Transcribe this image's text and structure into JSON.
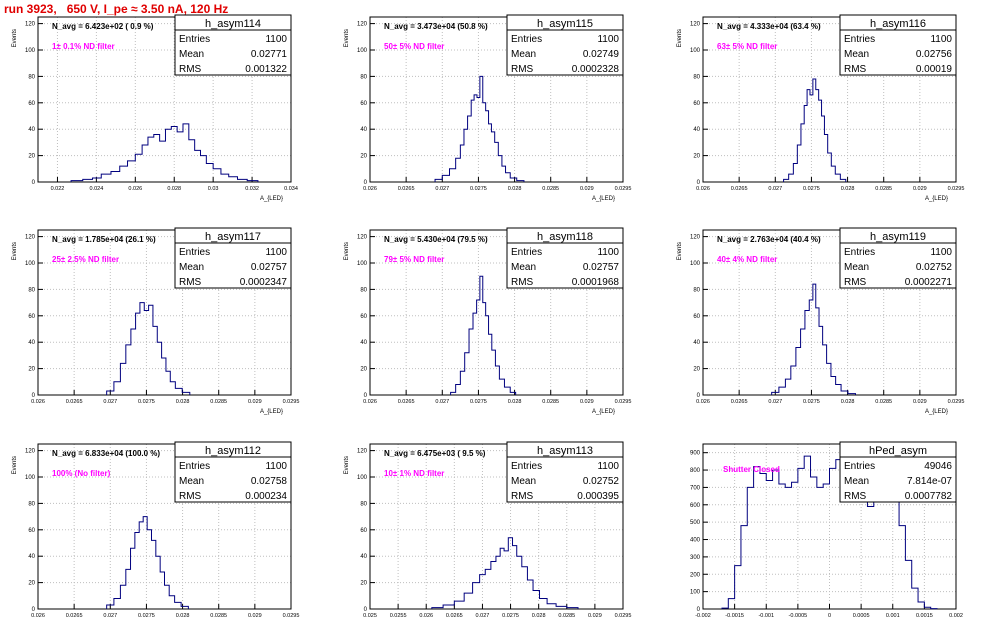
{
  "header": {
    "run_title": "run 3923,   650 V, I_pe ≈ 3.50 nA, 120 Hz"
  },
  "colors": {
    "title": "#e00000",
    "annotation": "#ff00ff",
    "histogram": "#00007f",
    "grid": "#bfbfbf"
  },
  "chart_data": [
    {
      "type": "bar",
      "name": "h_asym114",
      "stats": {
        "entries_label": "Entries",
        "entries": "1100",
        "mean_label": "Mean",
        "mean": "0.02771",
        "rms_label": "RMS",
        "rms": "0.001322"
      },
      "navg": "N_avg = 6.423e+02 ( 0.9 %)",
      "filter_label": "1± 0.1% ND filter",
      "ylabel": "Events",
      "xlabel": "A_{LED}",
      "xlim": [
        0.021,
        0.034
      ],
      "ylim": [
        0,
        125
      ],
      "yticks": [
        0,
        20,
        40,
        60,
        80,
        100,
        120
      ],
      "xticks": [
        "0.022",
        "0.024",
        "0.026",
        "0.028",
        "0.03",
        "0.032",
        "0.034"
      ],
      "xtick_values": [
        0.022,
        0.024,
        0.026,
        0.028,
        0.03,
        0.032,
        0.034
      ],
      "values": [
        [
          0.023,
          1
        ],
        [
          0.0236,
          2
        ],
        [
          0.024,
          3
        ],
        [
          0.0245,
          6
        ],
        [
          0.025,
          8
        ],
        [
          0.0254,
          12
        ],
        [
          0.0258,
          16
        ],
        [
          0.0262,
          21
        ],
        [
          0.0265,
          28
        ],
        [
          0.0268,
          34
        ],
        [
          0.0271,
          36
        ],
        [
          0.0274,
          31
        ],
        [
          0.0277,
          40
        ],
        [
          0.028,
          42
        ],
        [
          0.0283,
          38
        ],
        [
          0.0286,
          44
        ],
        [
          0.0289,
          32
        ],
        [
          0.0292,
          24
        ],
        [
          0.0295,
          20
        ],
        [
          0.0298,
          14
        ],
        [
          0.0302,
          10
        ],
        [
          0.0306,
          6
        ],
        [
          0.031,
          4
        ],
        [
          0.0315,
          2
        ],
        [
          0.032,
          1
        ]
      ]
    },
    {
      "type": "bar",
      "name": "h_asym115",
      "stats": {
        "entries_label": "Entries",
        "entries": "1100",
        "mean_label": "Mean",
        "mean": "0.02749",
        "rms_label": "RMS",
        "rms": "0.0002328"
      },
      "navg": "N_avg = 3.473e+04 (50.8 %)",
      "filter_label": "50± 5% ND filter",
      "ylabel": "Events",
      "xlabel": "A_{LED}",
      "xlim": [
        0.026,
        0.0295
      ],
      "ylim": [
        0,
        125
      ],
      "yticks": [
        0,
        20,
        40,
        60,
        80,
        100,
        120
      ],
      "xticks": [
        "0.026",
        "0.0265",
        "0.027",
        "0.0275",
        "0.028",
        "0.0285",
        "0.029",
        "0.0295"
      ],
      "xtick_values": [
        0.026,
        0.0265,
        0.027,
        0.0275,
        0.028,
        0.0285,
        0.029,
        0.0295
      ],
      "values": [
        [
          0.02695,
          2
        ],
        [
          0.02705,
          5
        ],
        [
          0.02715,
          10
        ],
        [
          0.02722,
          18
        ],
        [
          0.02728,
          28
        ],
        [
          0.02732,
          40
        ],
        [
          0.02738,
          50
        ],
        [
          0.02742,
          62
        ],
        [
          0.02746,
          66
        ],
        [
          0.0275,
          64
        ],
        [
          0.02754,
          80
        ],
        [
          0.02758,
          60
        ],
        [
          0.02762,
          54
        ],
        [
          0.02766,
          44
        ],
        [
          0.0277,
          38
        ],
        [
          0.02775,
          30
        ],
        [
          0.0278,
          20
        ],
        [
          0.02785,
          12
        ],
        [
          0.0279,
          7
        ],
        [
          0.02798,
          3
        ],
        [
          0.02808,
          1
        ]
      ]
    },
    {
      "type": "bar",
      "name": "h_asym116",
      "stats": {
        "entries_label": "Entries",
        "entries": "1100",
        "mean_label": "Mean",
        "mean": "0.02756",
        "rms_label": "RMS",
        "rms": "0.00019"
      },
      "navg": "N_avg = 4.333e+04 (63.4 %)",
      "filter_label": "63± 5% ND filter",
      "ylabel": "Events",
      "xlabel": "A_{LED}",
      "xlim": [
        0.026,
        0.0295
      ],
      "ylim": [
        0,
        125
      ],
      "yticks": [
        0,
        20,
        40,
        60,
        80,
        100,
        120
      ],
      "xticks": [
        "0.026",
        "0.0265",
        "0.027",
        "0.0275",
        "0.028",
        "0.0285",
        "0.029",
        "0.0295"
      ],
      "xtick_values": [
        0.026,
        0.0265,
        0.027,
        0.0275,
        0.028,
        0.0285,
        0.029,
        0.0295
      ],
      "values": [
        [
          0.02715,
          2
        ],
        [
          0.02722,
          6
        ],
        [
          0.02728,
          14
        ],
        [
          0.02733,
          28
        ],
        [
          0.02738,
          44
        ],
        [
          0.02742,
          58
        ],
        [
          0.02746,
          70
        ],
        [
          0.0275,
          66
        ],
        [
          0.02754,
          78
        ],
        [
          0.02758,
          70
        ],
        [
          0.02762,
          62
        ],
        [
          0.02766,
          50
        ],
        [
          0.0277,
          36
        ],
        [
          0.02775,
          22
        ],
        [
          0.0278,
          12
        ],
        [
          0.02786,
          6
        ],
        [
          0.02794,
          2
        ]
      ]
    },
    {
      "type": "bar",
      "name": "h_asym117",
      "stats": {
        "entries_label": "Entries",
        "entries": "1100",
        "mean_label": "Mean",
        "mean": "0.02757",
        "rms_label": "RMS",
        "rms": "0.0002347"
      },
      "navg": "N_avg = 1.785e+04 (26.1 %)",
      "filter_label": "25± 2.5% ND filter",
      "ylabel": "Events",
      "xlabel": "A_{LED}",
      "xlim": [
        0.026,
        0.0295
      ],
      "ylim": [
        0,
        125
      ],
      "yticks": [
        0,
        20,
        40,
        60,
        80,
        100,
        120
      ],
      "xticks": [
        "0.026",
        "0.0265",
        "0.027",
        "0.0275",
        "0.028",
        "0.0285",
        "0.029",
        "0.0295"
      ],
      "xtick_values": [
        0.026,
        0.0265,
        0.027,
        0.0275,
        0.028,
        0.0285,
        0.029,
        0.0295
      ],
      "values": [
        [
          0.027,
          3
        ],
        [
          0.0271,
          10
        ],
        [
          0.02718,
          24
        ],
        [
          0.02725,
          38
        ],
        [
          0.02732,
          50
        ],
        [
          0.02738,
          62
        ],
        [
          0.02744,
          70
        ],
        [
          0.0275,
          64
        ],
        [
          0.02756,
          68
        ],
        [
          0.02762,
          52
        ],
        [
          0.02768,
          40
        ],
        [
          0.02774,
          28
        ],
        [
          0.0278,
          18
        ],
        [
          0.02786,
          10
        ],
        [
          0.02794,
          5
        ],
        [
          0.02805,
          2
        ]
      ]
    },
    {
      "type": "bar",
      "name": "h_asym118",
      "stats": {
        "entries_label": "Entries",
        "entries": "1100",
        "mean_label": "Mean",
        "mean": "0.02757",
        "rms_label": "RMS",
        "rms": "0.0001968"
      },
      "navg": "N_avg = 5.430e+04 (79.5 %)",
      "filter_label": "79± 5% ND filter",
      "ylabel": "Events",
      "xlabel": "A_{LED}",
      "xlim": [
        0.026,
        0.0295
      ],
      "ylim": [
        0,
        125
      ],
      "yticks": [
        0,
        20,
        40,
        60,
        80,
        100,
        120
      ],
      "xticks": [
        "0.026",
        "0.0265",
        "0.027",
        "0.0275",
        "0.028",
        "0.0285",
        "0.029",
        "0.0295"
      ],
      "xtick_values": [
        0.026,
        0.0265,
        0.027,
        0.0275,
        0.028,
        0.0285,
        0.029,
        0.0295
      ],
      "values": [
        [
          0.02715,
          2
        ],
        [
          0.02722,
          8
        ],
        [
          0.02728,
          18
        ],
        [
          0.02734,
          32
        ],
        [
          0.0274,
          50
        ],
        [
          0.02745,
          62
        ],
        [
          0.0275,
          72
        ],
        [
          0.02754,
          90
        ],
        [
          0.02758,
          70
        ],
        [
          0.02762,
          60
        ],
        [
          0.02766,
          46
        ],
        [
          0.02771,
          34
        ],
        [
          0.02776,
          22
        ],
        [
          0.02782,
          12
        ],
        [
          0.0279,
          6
        ],
        [
          0.02798,
          2
        ]
      ]
    },
    {
      "type": "bar",
      "name": "h_asym119",
      "stats": {
        "entries_label": "Entries",
        "entries": "1100",
        "mean_label": "Mean",
        "mean": "0.02752",
        "rms_label": "RMS",
        "rms": "0.0002271"
      },
      "navg": "N_avg = 2.763e+04 (40.4 %)",
      "filter_label": "40± 4% ND filter",
      "ylabel": "Events",
      "xlabel": "A_{LED}",
      "xlim": [
        0.026,
        0.0295
      ],
      "ylim": [
        0,
        125
      ],
      "yticks": [
        0,
        20,
        40,
        60,
        80,
        100,
        120
      ],
      "xticks": [
        "0.026",
        "0.0265",
        "0.027",
        "0.0275",
        "0.028",
        "0.0285",
        "0.029",
        "0.0295"
      ],
      "xtick_values": [
        0.026,
        0.0265,
        0.027,
        0.0275,
        0.028,
        0.0285,
        0.029,
        0.0295
      ],
      "values": [
        [
          0.027,
          2
        ],
        [
          0.0271,
          6
        ],
        [
          0.02718,
          12
        ],
        [
          0.02725,
          22
        ],
        [
          0.02732,
          36
        ],
        [
          0.02738,
          50
        ],
        [
          0.02744,
          64
        ],
        [
          0.0275,
          72
        ],
        [
          0.02754,
          84
        ],
        [
          0.02758,
          66
        ],
        [
          0.02763,
          52
        ],
        [
          0.02768,
          38
        ],
        [
          0.02774,
          24
        ],
        [
          0.0278,
          14
        ],
        [
          0.02787,
          8
        ],
        [
          0.02795,
          3
        ],
        [
          0.02806,
          1
        ]
      ]
    },
    {
      "type": "bar",
      "name": "h_asym112",
      "stats": {
        "entries_label": "Entries",
        "entries": "1100",
        "mean_label": "Mean",
        "mean": "0.02758",
        "rms_label": "RMS",
        "rms": "0.000234"
      },
      "navg": "N_avg = 6.833e+04 (100.0 %)",
      "filter_label": "100% (No filter)",
      "ylabel": "Events",
      "xlabel": "A_{LED}",
      "xlim": [
        0.026,
        0.0295
      ],
      "ylim": [
        0,
        125
      ],
      "yticks": [
        0,
        20,
        40,
        60,
        80,
        100,
        120
      ],
      "xticks": [
        "0.026",
        "0.0265",
        "0.027",
        "0.0275",
        "0.028",
        "0.0285",
        "0.029",
        "0.0295"
      ],
      "xtick_values": [
        0.026,
        0.0265,
        0.027,
        0.0275,
        0.028,
        0.0285,
        0.029,
        0.0295
      ],
      "values": [
        [
          0.027,
          3
        ],
        [
          0.0271,
          8
        ],
        [
          0.02718,
          18
        ],
        [
          0.02725,
          30
        ],
        [
          0.02731,
          46
        ],
        [
          0.02737,
          58
        ],
        [
          0.02743,
          66
        ],
        [
          0.02748,
          70
        ],
        [
          0.02754,
          60
        ],
        [
          0.0276,
          52
        ],
        [
          0.02766,
          40
        ],
        [
          0.02772,
          28
        ],
        [
          0.02778,
          18
        ],
        [
          0.02785,
          10
        ],
        [
          0.02793,
          5
        ],
        [
          0.02803,
          2
        ]
      ]
    },
    {
      "type": "bar",
      "name": "h_asym113",
      "stats": {
        "entries_label": "Entries",
        "entries": "1100",
        "mean_label": "Mean",
        "mean": "0.02752",
        "rms_label": "RMS",
        "rms": "0.000395"
      },
      "navg": "N_avg = 6.475e+03 ( 9.5 %)",
      "filter_label": "10± 1% ND filter",
      "ylabel": "Events",
      "xlabel": "A_{LED}",
      "xlim": [
        0.025,
        0.0295
      ],
      "ylim": [
        0,
        125
      ],
      "yticks": [
        0,
        20,
        40,
        60,
        80,
        100,
        120
      ],
      "xticks": [
        "0.025",
        "0.0255",
        "0.026",
        "0.0265",
        "0.027",
        "0.0275",
        "0.028",
        "0.0285",
        "0.029",
        "0.0295"
      ],
      "xtick_values": [
        0.025,
        0.0255,
        0.026,
        0.0265,
        0.027,
        0.0275,
        0.028,
        0.0285,
        0.029,
        0.0295
      ],
      "values": [
        [
          0.0262,
          1
        ],
        [
          0.0264,
          3
        ],
        [
          0.0266,
          6
        ],
        [
          0.02675,
          12
        ],
        [
          0.0269,
          20
        ],
        [
          0.027,
          26
        ],
        [
          0.0271,
          30
        ],
        [
          0.0272,
          36
        ],
        [
          0.02728,
          40
        ],
        [
          0.02735,
          46
        ],
        [
          0.02742,
          44
        ],
        [
          0.0275,
          54
        ],
        [
          0.02757,
          48
        ],
        [
          0.02765,
          40
        ],
        [
          0.02775,
          32
        ],
        [
          0.02785,
          22
        ],
        [
          0.02795,
          14
        ],
        [
          0.02808,
          8
        ],
        [
          0.02822,
          4
        ],
        [
          0.0284,
          2
        ],
        [
          0.0286,
          1
        ]
      ]
    },
    {
      "type": "bar",
      "name": "hPed_asym",
      "stats": {
        "entries_label": "Entries",
        "entries": "49046",
        "mean_label": "Mean",
        "mean": "7.814e-07",
        "rms_label": "RMS",
        "rms": "0.0007782"
      },
      "navg": "",
      "filter_label": "Shutter Closed",
      "ylabel": "",
      "xlabel": "",
      "xlim": [
        -0.002,
        0.002
      ],
      "ylim": [
        0,
        950
      ],
      "yticks": [
        0,
        100,
        200,
        300,
        400,
        500,
        600,
        700,
        800,
        900
      ],
      "xticks": [
        "-0.002",
        "-0.0015",
        "-0.001",
        "-0.0005",
        "0",
        "0.0005",
        "0.001",
        "0.0015",
        "0.002"
      ],
      "xtick_values": [
        -0.002,
        -0.0015,
        -0.001,
        -0.0005,
        0,
        0.0005,
        0.001,
        0.0015,
        0.002
      ],
      "values": [
        [
          -0.00165,
          5
        ],
        [
          -0.00155,
          60
        ],
        [
          -0.00145,
          250
        ],
        [
          -0.00135,
          480
        ],
        [
          -0.00125,
          700
        ],
        [
          -0.00115,
          820
        ],
        [
          -0.00105,
          780
        ],
        [
          -0.00095,
          740
        ],
        [
          -0.00085,
          800
        ],
        [
          -0.00075,
          720
        ],
        [
          -0.00065,
          700
        ],
        [
          -0.00055,
          730
        ],
        [
          -0.00045,
          810
        ],
        [
          -0.00035,
          880
        ],
        [
          -0.00025,
          760
        ],
        [
          -0.00015,
          700
        ],
        [
          -5e-05,
          720
        ],
        [
          5e-05,
          810
        ],
        [
          0.00015,
          860
        ],
        [
          0.00025,
          930
        ],
        [
          0.00035,
          880
        ],
        [
          0.00045,
          750
        ],
        [
          0.00055,
          620
        ],
        [
          0.00065,
          590
        ],
        [
          0.00075,
          640
        ],
        [
          0.00085,
          680
        ],
        [
          0.00095,
          690
        ],
        [
          0.00105,
          650
        ],
        [
          0.00115,
          480
        ],
        [
          0.00125,
          280
        ],
        [
          0.00135,
          120
        ],
        [
          0.00145,
          40
        ],
        [
          0.00155,
          10
        ],
        [
          0.00165,
          2
        ]
      ]
    }
  ]
}
